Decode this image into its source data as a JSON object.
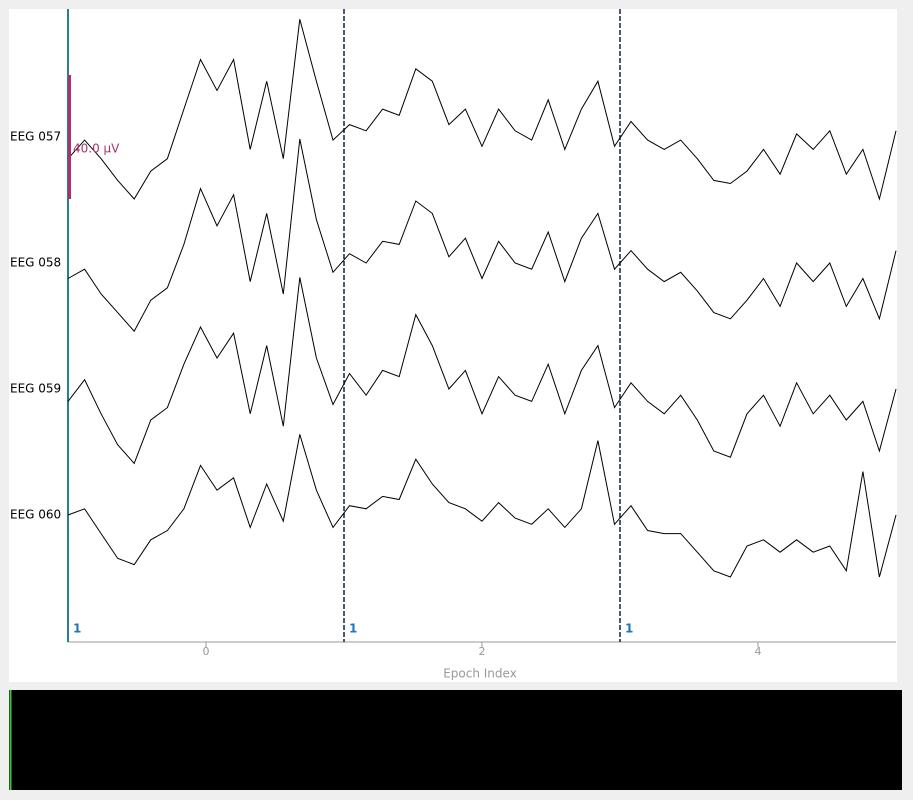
{
  "chart_data": {
    "type": "line",
    "x_label": "Epoch Index",
    "xlim": [
      -1,
      5
    ],
    "xticks": [
      0,
      2,
      4
    ],
    "x": [
      -1,
      -0.88,
      -0.76,
      -0.64,
      -0.52,
      -0.4,
      -0.28,
      -0.16,
      -0.04,
      0.08,
      0.2,
      0.32,
      0.44,
      0.56,
      0.68,
      0.8,
      0.92,
      1.04,
      1.16,
      1.28,
      1.4,
      1.52,
      1.64,
      1.76,
      1.88,
      2,
      2.12,
      2.24,
      2.36,
      2.48,
      2.6,
      2.72,
      2.84,
      2.96,
      3.08,
      3.2,
      3.32,
      3.44,
      3.56,
      3.68,
      3.8,
      3.92,
      4.04,
      4.16,
      4.28,
      4.4,
      4.52,
      4.64,
      4.76,
      4.88,
      5
    ],
    "series": [
      {
        "name": "EEG 057",
        "color": "#000000",
        "values": [
          -7,
          -1,
          -7,
          -14,
          -20,
          -11,
          -7,
          9,
          25,
          15,
          25,
          -4,
          18,
          -7,
          38,
          18,
          -1,
          4,
          2,
          9,
          7,
          22,
          18,
          4,
          9,
          -3,
          9,
          2,
          -1,
          12,
          -4,
          9,
          18,
          -3,
          5,
          -1,
          -4,
          -1,
          -7,
          -14,
          -15,
          -11,
          -4,
          -12,
          1,
          -4,
          2,
          -12,
          -4,
          -20,
          2
        ]
      },
      {
        "name": "EEG 058",
        "color": "#000000",
        "values": [
          -5,
          -2,
          -10,
          -16,
          -22,
          -12,
          -8,
          6,
          24,
          12,
          22,
          -6,
          16,
          -10,
          40,
          14,
          -3,
          3,
          0,
          7,
          6,
          20,
          16,
          2,
          8,
          -5,
          7,
          0,
          -2,
          10,
          -6,
          8,
          16,
          -2,
          4,
          -2,
          -6,
          -3,
          -9,
          -16,
          -18,
          -12,
          -5,
          -14,
          0,
          -6,
          0,
          -14,
          -5,
          -18,
          4
        ]
      },
      {
        "name": "EEG 059",
        "color": "#000000",
        "values": [
          -4,
          3,
          -8,
          -18,
          -24,
          -10,
          -6,
          8,
          20,
          10,
          18,
          -8,
          14,
          -12,
          36,
          10,
          -5,
          5,
          -2,
          6,
          4,
          24,
          14,
          0,
          6,
          -8,
          4,
          -2,
          -4,
          8,
          -8,
          6,
          14,
          -6,
          2,
          -4,
          -8,
          -2,
          -10,
          -20,
          -22,
          -8,
          -2,
          -12,
          2,
          -8,
          -2,
          -10,
          -4,
          -20,
          0
        ]
      },
      {
        "name": "EEG 060",
        "color": "#000000",
        "values": [
          0,
          2,
          -6,
          -14,
          -16,
          -8,
          -5,
          2,
          16,
          8,
          12,
          -4,
          10,
          -2,
          26,
          8,
          -4,
          3,
          2,
          6,
          5,
          18,
          10,
          4,
          2,
          -2,
          4,
          -1,
          -3,
          2,
          -4,
          2,
          24,
          -3,
          3,
          -5,
          -6,
          -6,
          -12,
          -18,
          -20,
          -10,
          -8,
          -12,
          -8,
          -12,
          -10,
          -18,
          14,
          -20,
          0
        ]
      }
    ],
    "epoch_starts": [
      -1,
      1,
      3
    ],
    "epoch_labels": [
      1,
      1,
      1
    ],
    "epoch_label_color": "#1f77b4",
    "epoch_boundary_color": "#0b2545",
    "scale_bar": {
      "value": 40.0,
      "label": "40.0 µV",
      "color": "#a8326e"
    }
  }
}
